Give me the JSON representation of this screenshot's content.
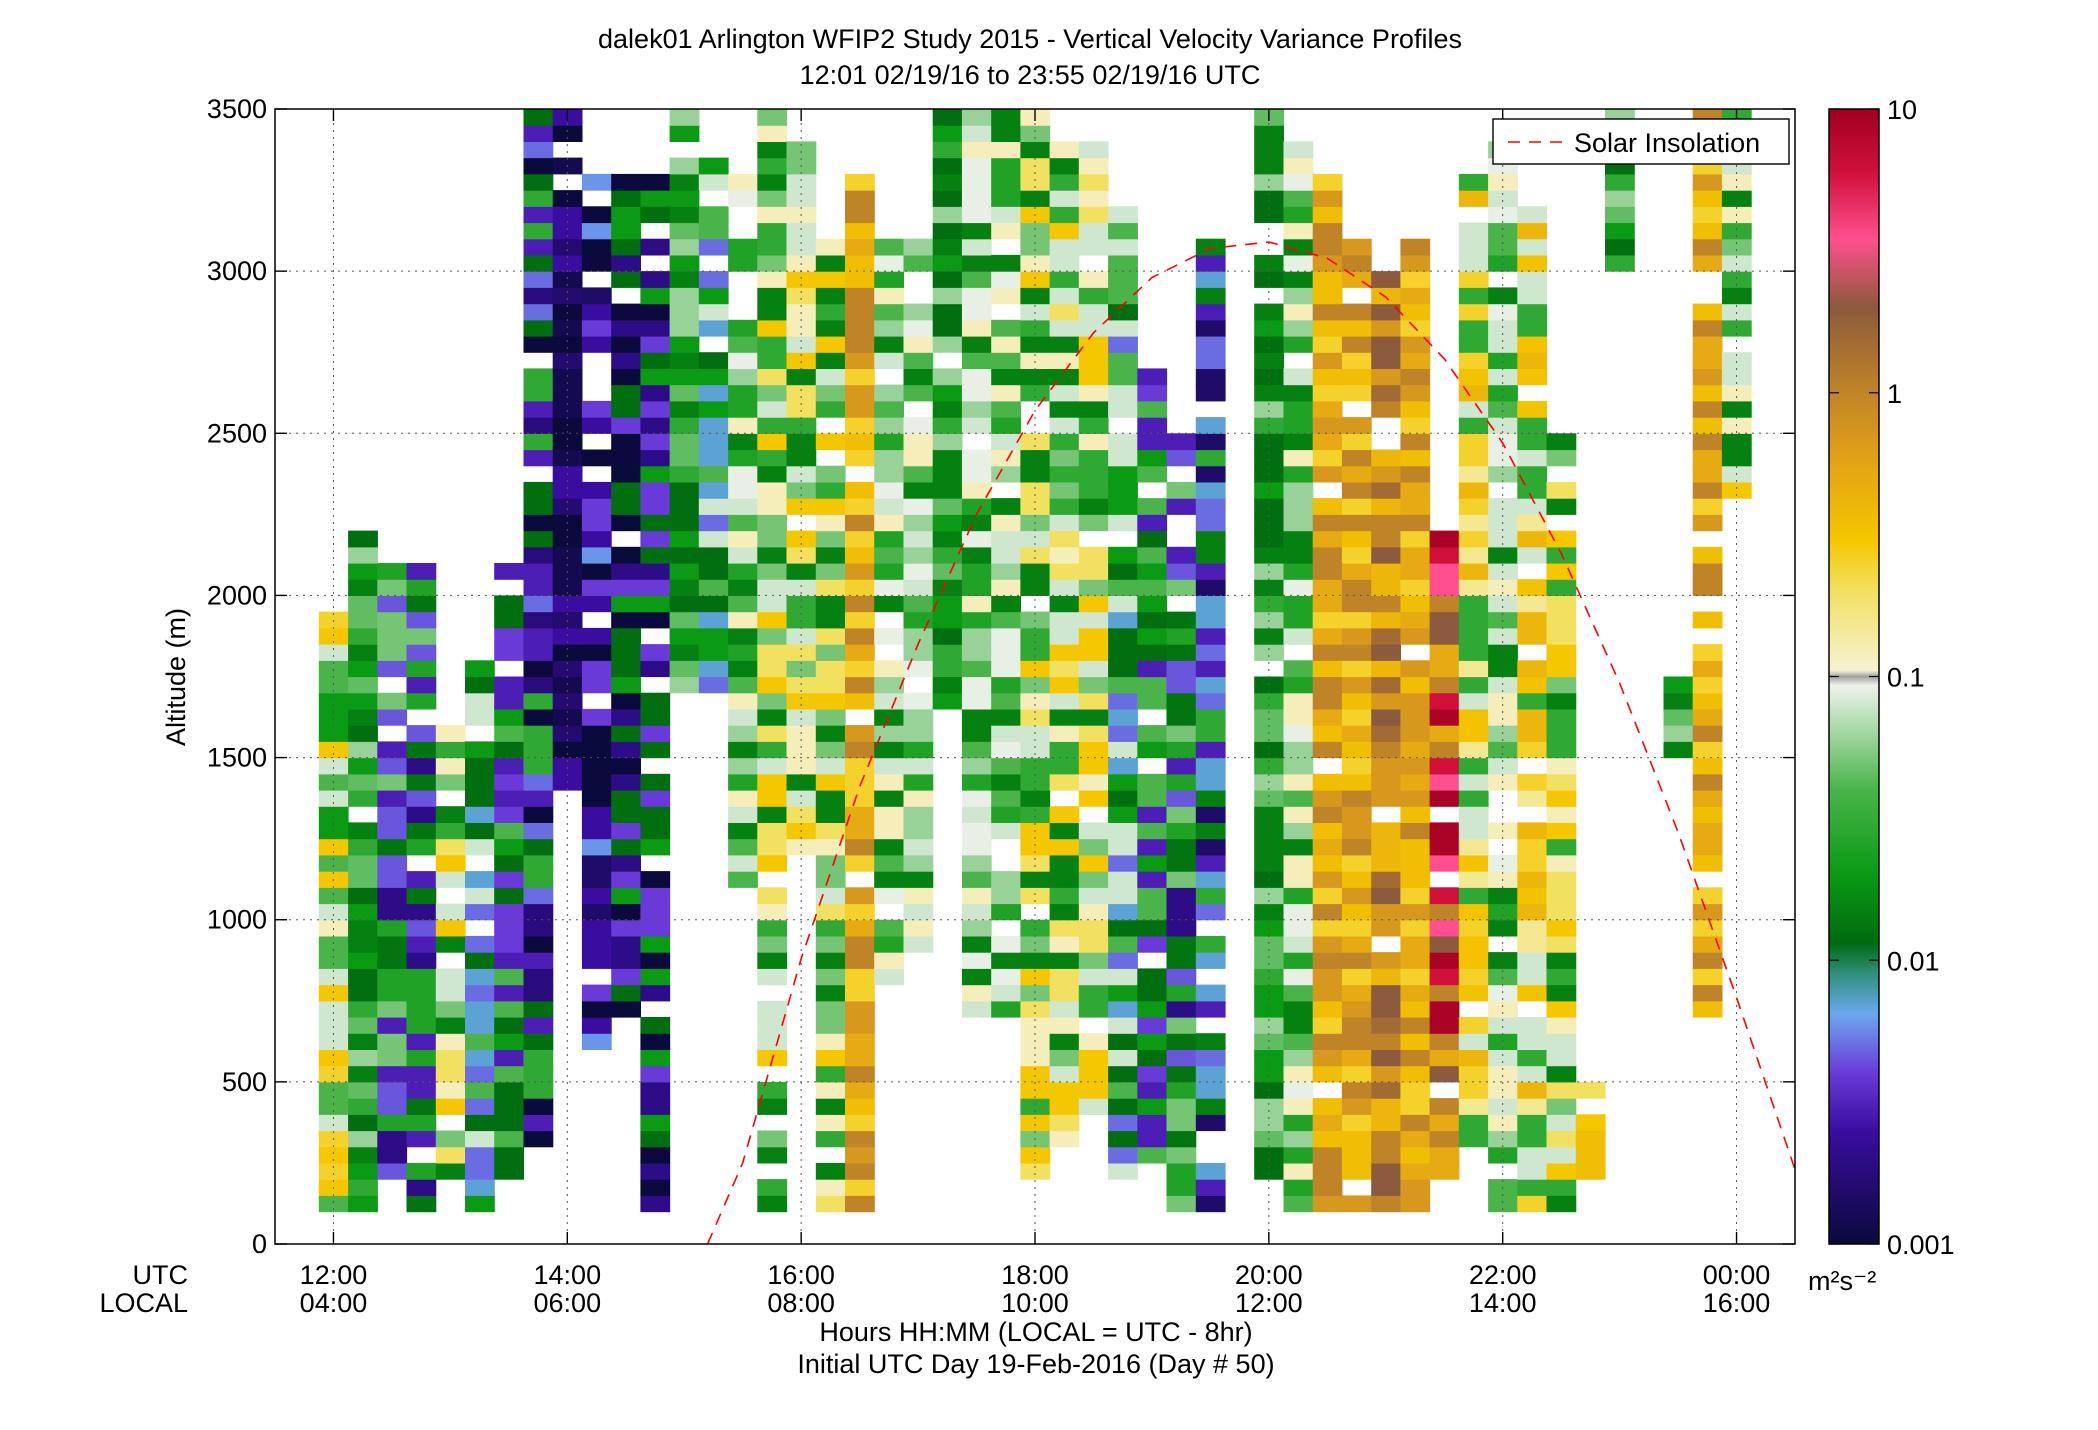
{
  "chart_data": {
    "type": "heatmap",
    "title_line1": "dalek01 Arlington WFIP2 Study 2015 - Vertical Velocity Variance Profiles",
    "title_line2": "12:01 02/19/16 to 23:55 02/19/16  UTC",
    "ylabel": "Altitude (m)",
    "xlabel_line1": "Hours HH:MM  (LOCAL = UTC - 8hr)",
    "xlabel_line2": "Initial UTC Day 19-Feb-2016 (Day # 50)",
    "xtick_row_labels": [
      "UTC",
      "LOCAL"
    ],
    "x_ticks_utc": [
      "12:00",
      "14:00",
      "16:00",
      "18:00",
      "20:00",
      "22:00",
      "00:00"
    ],
    "x_ticks_local": [
      "04:00",
      "06:00",
      "08:00",
      "10:00",
      "12:00",
      "14:00",
      "16:00"
    ],
    "x_tick_hours": [
      12,
      14,
      16,
      18,
      20,
      22,
      24
    ],
    "xlim_hours": [
      11.5,
      24.5
    ],
    "y_ticks": [
      0,
      500,
      1000,
      1500,
      2000,
      2500,
      3000,
      3500
    ],
    "ylim": [
      0,
      3500
    ],
    "grid": true,
    "legend": {
      "entries": [
        "Solar Insolation"
      ],
      "placement": "top-right"
    },
    "colorbar": {
      "scale": "log",
      "ticks": [
        "0.001",
        "0.01",
        "0.1",
        "1",
        "10"
      ],
      "min": 0.001,
      "max": 10,
      "units_label": "m²s⁻²"
    },
    "colorbar_stops": [
      {
        "v": 0.001,
        "c": "#0a0a3c"
      },
      {
        "v": 0.0025,
        "c": "#3a0ca0"
      },
      {
        "v": 0.004,
        "c": "#6a3ad8"
      },
      {
        "v": 0.0065,
        "c": "#6aa8ee"
      },
      {
        "v": 0.009,
        "c": "#2f8f7a"
      },
      {
        "v": 0.0115,
        "c": "#006a10"
      },
      {
        "v": 0.02,
        "c": "#0a9a14"
      },
      {
        "v": 0.04,
        "c": "#4ab44a"
      },
      {
        "v": 0.07,
        "c": "#b6deb6"
      },
      {
        "v": 0.093,
        "c": "#eef2ec"
      },
      {
        "v": 0.1,
        "c": "#a0a0a0"
      },
      {
        "v": 0.105,
        "c": "#f7f2d2"
      },
      {
        "v": 0.2,
        "c": "#f2e060"
      },
      {
        "v": 0.3,
        "c": "#f5c700"
      },
      {
        "v": 0.6,
        "c": "#e0a018"
      },
      {
        "v": 1.0,
        "c": "#c08428"
      },
      {
        "v": 2.0,
        "c": "#8c5a3c"
      },
      {
        "v": 3.5,
        "c": "#ff4f8f"
      },
      {
        "v": 6.0,
        "c": "#d0103a"
      },
      {
        "v": 10.0,
        "c": "#a00020"
      }
    ],
    "solar_insolation": {
      "name": "Solar Insolation",
      "color": "#ff0000",
      "x_hours": [
        15.2,
        15.5,
        16.0,
        16.5,
        17.0,
        17.5,
        18.0,
        18.5,
        19.0,
        19.5,
        20.0,
        20.5,
        21.0,
        21.5,
        22.0,
        22.5,
        23.0,
        23.5,
        24.0,
        24.5
      ],
      "y": [
        0,
        250,
        880,
        1410,
        1850,
        2250,
        2570,
        2810,
        2980,
        3070,
        3090,
        3040,
        2920,
        2730,
        2470,
        2130,
        1730,
        1270,
        760,
        230
      ]
    },
    "columns_start_hour": 12.0,
    "column_width_hours": 0.25,
    "gate_bottom_m": 100,
    "gate_height_m": 50,
    "profiles": [
      {
        "t": 12.0,
        "bottom": 100,
        "top": 2000,
        "pattern": "mix_gy"
      },
      {
        "t": 12.25,
        "bottom": 100,
        "top": 2200,
        "pattern": "green"
      },
      {
        "t": 12.5,
        "bottom": 200,
        "top": 2100,
        "pattern": "purple_green"
      },
      {
        "t": 12.75,
        "bottom": 100,
        "top": 2100,
        "pattern": "purple_green"
      },
      {
        "t": 13.0,
        "bottom": 200,
        "top": 1600,
        "pattern": "green_yellow"
      },
      {
        "t": 13.25,
        "bottom": 100,
        "top": 1800,
        "pattern": "green_blue"
      },
      {
        "t": 13.5,
        "bottom": 200,
        "top": 2100,
        "pattern": "green_purple"
      },
      {
        "t": 13.75,
        "bottom": 300,
        "top": 3500,
        "pattern": "purple_dark"
      },
      {
        "t": 14.0,
        "bottom": 1400,
        "top": 3500,
        "pattern": "dark"
      },
      {
        "t": 14.25,
        "bottom": 600,
        "top": 3300,
        "pattern": "dark_purple"
      },
      {
        "t": 14.5,
        "bottom": 700,
        "top": 3300,
        "pattern": "dark_green"
      },
      {
        "t": 14.75,
        "bottom": 100,
        "top": 3300,
        "pattern": "dark_green"
      },
      {
        "t": 15.0,
        "bottom": 1700,
        "top": 3500,
        "pattern": "green"
      },
      {
        "t": 15.25,
        "bottom": 1700,
        "top": 3400,
        "pattern": "green_blue"
      },
      {
        "t": 15.5,
        "bottom": 1100,
        "top": 3300,
        "pattern": "green_white"
      },
      {
        "t": 15.75,
        "bottom": 100,
        "top": 3500,
        "pattern": "green_yellow"
      },
      {
        "t": 16.0,
        "bottom": 1200,
        "top": 3400,
        "pattern": "green_yellow"
      },
      {
        "t": 16.25,
        "bottom": 100,
        "top": 3100,
        "pattern": "green_yellow"
      },
      {
        "t": 16.5,
        "bottom": 100,
        "top": 3300,
        "pattern": "orange_core"
      },
      {
        "t": 16.75,
        "bottom": 800,
        "top": 3100,
        "pattern": "green_white"
      },
      {
        "t": 17.0,
        "bottom": 900,
        "top": 3100,
        "pattern": "green_white"
      },
      {
        "t": 17.25,
        "bottom": 1600,
        "top": 3500,
        "pattern": "green"
      },
      {
        "t": 17.5,
        "bottom": 700,
        "top": 3500,
        "pattern": "green_white"
      },
      {
        "t": 17.75,
        "bottom": 700,
        "top": 3500,
        "pattern": "green_white"
      },
      {
        "t": 18.0,
        "bottom": 200,
        "top": 3500,
        "pattern": "green_yellow"
      },
      {
        "t": 18.25,
        "bottom": 300,
        "top": 3400,
        "pattern": "green_yellow"
      },
      {
        "t": 18.5,
        "bottom": 400,
        "top": 3400,
        "pattern": "green_yellow"
      },
      {
        "t": 18.75,
        "bottom": 200,
        "top": 3200,
        "pattern": "green_blue"
      },
      {
        "t": 19.0,
        "bottom": 200,
        "top": 2700,
        "pattern": "green_purple"
      },
      {
        "t": 19.25,
        "bottom": 100,
        "top": 2500,
        "pattern": "purple_green"
      },
      {
        "t": 19.5,
        "bottom": 100,
        "top": 3100,
        "pattern": "purple_blue"
      },
      {
        "t": 20.0,
        "bottom": 200,
        "top": 3500,
        "pattern": "green"
      },
      {
        "t": 20.25,
        "bottom": 100,
        "top": 3400,
        "pattern": "green_white"
      },
      {
        "t": 20.5,
        "bottom": 100,
        "top": 3300,
        "pattern": "orange_core"
      },
      {
        "t": 20.75,
        "bottom": 100,
        "top": 3100,
        "pattern": "orange_core"
      },
      {
        "t": 21.0,
        "bottom": 100,
        "top": 3000,
        "pattern": "brown_core"
      },
      {
        "t": 21.25,
        "bottom": 100,
        "top": 3100,
        "pattern": "orange_core"
      },
      {
        "t": 21.5,
        "bottom": 200,
        "top": 2200,
        "pattern": "pink_core"
      },
      {
        "t": 21.75,
        "bottom": 300,
        "top": 3300,
        "pattern": "yellow_green"
      },
      {
        "t": 22.0,
        "bottom": 100,
        "top": 3400,
        "pattern": "green_white"
      },
      {
        "t": 22.25,
        "bottom": 100,
        "top": 3200,
        "pattern": "yellow_green"
      },
      {
        "t": 22.5,
        "bottom": 100,
        "top": 2500,
        "pattern": "green_yellow"
      },
      {
        "t": 22.75,
        "bottom": 200,
        "top": 500,
        "pattern": "yellow"
      },
      {
        "t": 23.0,
        "bottom": 3000,
        "top": 3500,
        "pattern": "green"
      },
      {
        "t": 23.5,
        "bottom": 1500,
        "top": 1800,
        "pattern": "green"
      },
      {
        "t": 23.75,
        "bottom": 700,
        "top": 3500,
        "pattern": "orange_core"
      },
      {
        "t": 24.0,
        "bottom": 2300,
        "top": 3500,
        "pattern": "green_yellow"
      }
    ]
  }
}
